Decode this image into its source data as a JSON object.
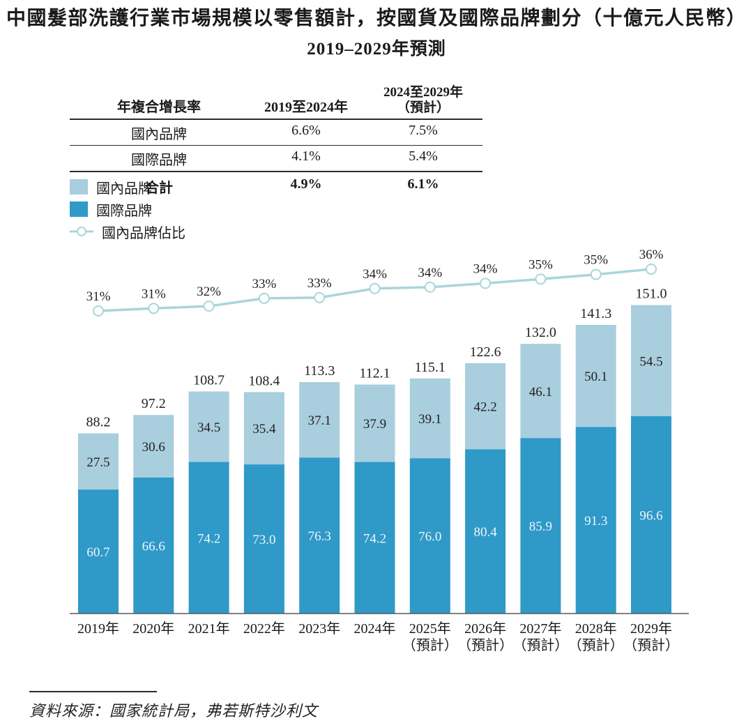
{
  "title": {
    "line1": "中國髮部洗護行業市場規模以零售額計，按國貨及國際品牌劃分（十億元人民幣）",
    "line2": "2019–2029年預測"
  },
  "cagr_table": {
    "header": {
      "col1": "年複合增長率",
      "col2": "2019至2024年",
      "col3_line1": "2024至2029年",
      "col3_line2": "（預計）"
    },
    "rows": [
      {
        "label": "國內品牌",
        "v1": "6.6%",
        "v2": "7.5%"
      },
      {
        "label": "國際品牌",
        "v1": "4.1%",
        "v2": "5.4%"
      }
    ],
    "total": {
      "label": "合計",
      "v1": "4.9%",
      "v2": "6.1%"
    }
  },
  "legend": {
    "domestic": "國內品牌",
    "international": "國際品牌",
    "ratio": "國內品牌佔比"
  },
  "colors": {
    "domestic": "#a9cede",
    "international": "#2f99c8",
    "ratio_line": "#a9d6d9",
    "axis": "#58595b",
    "label_dark": "#231f20",
    "label_light": "#eef6fa"
  },
  "chart_data": {
    "type": "bar",
    "subtype": "stacked-bar-with-line",
    "title": "中國髮部洗護行業市場規模以零售額計，按國貨及國際品牌劃分（十億元人民幣）2019–2029年預測",
    "ylabel": "十億元人民幣",
    "grid": false,
    "legend_position": "top-left",
    "categories": [
      "2019年",
      "2020年",
      "2021年",
      "2022年",
      "2023年",
      "2024年",
      "2025年",
      "2026年",
      "2027年",
      "2028年",
      "2029年"
    ],
    "category_notes": [
      "",
      "",
      "",
      "",
      "",
      "",
      "（預計）",
      "（預計）",
      "（預計）",
      "（預計）",
      "（預計）"
    ],
    "series": [
      {
        "name": "國際品牌",
        "color": "#2f99c8",
        "values": [
          60.7,
          66.6,
          74.2,
          73.0,
          76.3,
          74.2,
          76.0,
          80.4,
          85.9,
          91.3,
          96.6
        ]
      },
      {
        "name": "國內品牌",
        "color": "#a9cede",
        "values": [
          27.5,
          30.6,
          34.5,
          35.4,
          37.1,
          37.9,
          39.1,
          42.2,
          46.1,
          50.1,
          54.5
        ]
      }
    ],
    "totals": [
      88.2,
      97.2,
      108.7,
      108.4,
      113.3,
      112.1,
      115.1,
      122.6,
      132.0,
      141.3,
      151.0
    ],
    "line_series": {
      "name": "國內品牌佔比",
      "labels": [
        "31%",
        "31%",
        "32%",
        "33%",
        "33%",
        "34%",
        "34%",
        "34%",
        "35%",
        "35%",
        "36%"
      ],
      "ratios": [
        31.18,
        31.48,
        31.74,
        32.66,
        32.74,
        33.81,
        33.97,
        34.42,
        34.92,
        35.46,
        36.09
      ]
    }
  },
  "footer": {
    "source": "資料來源：國家統計局，弗若斯特沙利文"
  }
}
